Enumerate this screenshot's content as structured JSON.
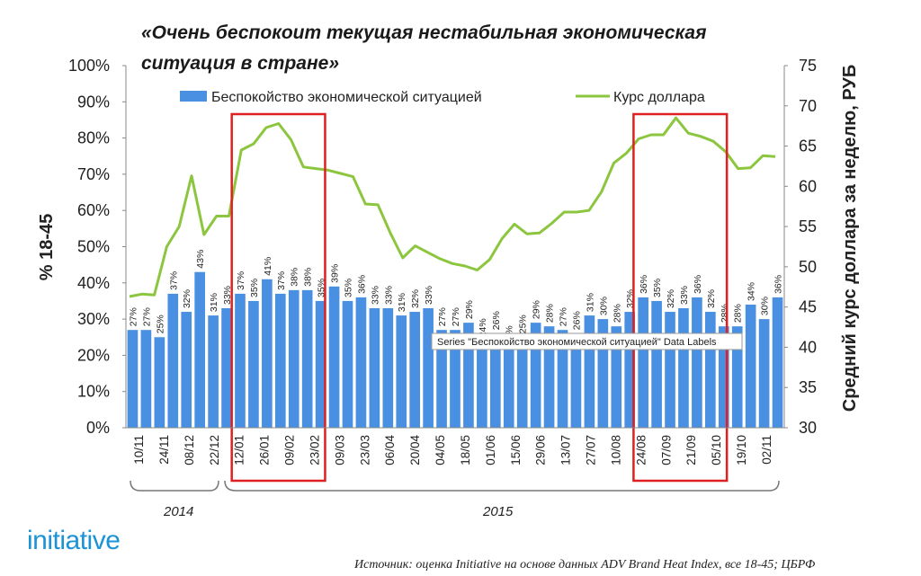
{
  "title_line1": "«Очень беспокоит текущая нестабильная экономическая",
  "title_line2": "ситуация в стране»",
  "brand": "initiative",
  "source": "Источник: оценка Initiative на основе данных ADV Brand Heat Index, все 18-45; ЦБРФ",
  "tooltip": "Series \"Беспокойство экономической ситуацией\" Data Labels",
  "year_groups": [
    "2014",
    "2015"
  ],
  "chart_data": {
    "type": "bar+line",
    "left_axis_label": "% 18-45",
    "right_axis_label": "Средний курс доллара за неделю, РУБ",
    "left_ylim": [
      0,
      100
    ],
    "left_ticks": [
      "0%",
      "10%",
      "20%",
      "30%",
      "40%",
      "50%",
      "60%",
      "70%",
      "80%",
      "90%",
      "100%"
    ],
    "right_ylim": [
      30,
      75
    ],
    "right_ticks": [
      "30",
      "35",
      "40",
      "45",
      "50",
      "55",
      "60",
      "65",
      "70",
      "75"
    ],
    "x_tick_labels": [
      "10/11",
      "24/11",
      "08/12",
      "22/12",
      "12/01",
      "26/01",
      "09/02",
      "23/02",
      "09/03",
      "23/03",
      "06/04",
      "20/04",
      "04/05",
      "18/05",
      "01/06",
      "15/06",
      "29/06",
      "13/07",
      "27/07",
      "10/08",
      "24/08",
      "07/09",
      "21/09",
      "05/10",
      "19/10",
      "02/11"
    ],
    "series": [
      {
        "name": "Беспокойство экономической ситуацией",
        "kind": "bar",
        "axis": "left",
        "color": "#4a90e2",
        "values": [
          27,
          27,
          25,
          37,
          32,
          43,
          31,
          33,
          37,
          35,
          41,
          37,
          38,
          38,
          35,
          39,
          35,
          36,
          33,
          33,
          31,
          32,
          33,
          27,
          27,
          29,
          24,
          26,
          22,
          25,
          29,
          28,
          27,
          26,
          31,
          30,
          28,
          32,
          36,
          35,
          32,
          33,
          36,
          32,
          28,
          28,
          34,
          30,
          36
        ],
        "labels": [
          "27%",
          "27%",
          "25%",
          "37%",
          "32%",
          "43%",
          "31%",
          "33%",
          "37%",
          "35%",
          "41%",
          "37%",
          "38%",
          "38%",
          "35%",
          "39%",
          "35%",
          "36%",
          "33%",
          "33%",
          "31%",
          "32%",
          "33%",
          "27%",
          "27%",
          "29%",
          "24%",
          "26%",
          "22%",
          "25%",
          "29%",
          "28%",
          "27%",
          "26%",
          "31%",
          "30%",
          "28%",
          "32%",
          "36%",
          "35%",
          "32%",
          "33%",
          "36%",
          "32%",
          "28%",
          "28%",
          "34%",
          "30%",
          "36%"
        ]
      },
      {
        "name": "Курс доллара",
        "kind": "line",
        "axis": "right",
        "color": "#8cc63f",
        "values": [
          46.3,
          46.6,
          46.5,
          52.5,
          55,
          61.3,
          54,
          56.3,
          56.3,
          64.5,
          65.3,
          67.3,
          67.8,
          65.8,
          62.4,
          62.2,
          62,
          61.6,
          61.2,
          57.8,
          57.7,
          54.2,
          51.1,
          52.6,
          51.8,
          51,
          50.4,
          50.1,
          49.6,
          50.9,
          53.5,
          55.3,
          54.1,
          54.2,
          55.4,
          56.8,
          56.8,
          57,
          59.3,
          62.9,
          64.1,
          65.9,
          66.4,
          66.4,
          68.5,
          66.6,
          66.2,
          65.6,
          64.3,
          62.2,
          62.3,
          63.8,
          63.7
        ]
      }
    ],
    "highlights": [
      {
        "from": "12/01",
        "to": "23/02",
        "color": "#e02020"
      },
      {
        "from": "24/08",
        "to": "05/10",
        "color": "#e02020"
      }
    ]
  }
}
